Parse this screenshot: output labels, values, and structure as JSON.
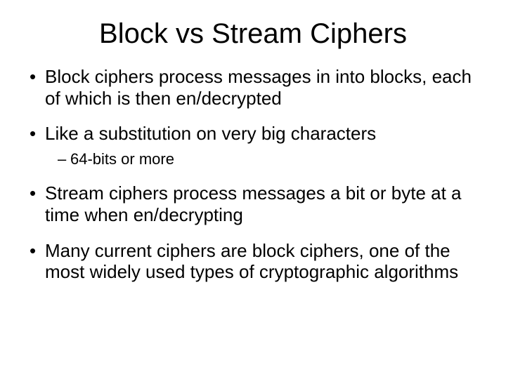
{
  "title": "Block vs Stream Ciphers",
  "bullets": [
    {
      "text": "Block ciphers process messages in into blocks, each of which is then en/decrypted"
    },
    {
      "text": "Like a substitution on very big characters",
      "sub": [
        "64-bits or more"
      ]
    },
    {
      "text": "Stream ciphers process messages a bit or byte at a time when en/decrypting"
    },
    {
      "text": "Many current ciphers are block ciphers, one of the most widely used types of cryptographic algorithms"
    }
  ],
  "colors": {
    "background": "#ffffff",
    "text": "#000000"
  },
  "fonts": {
    "family": "Comic Sans MS",
    "title_size_pt": 40,
    "body_size_pt": 26,
    "sub_size_pt": 22
  }
}
